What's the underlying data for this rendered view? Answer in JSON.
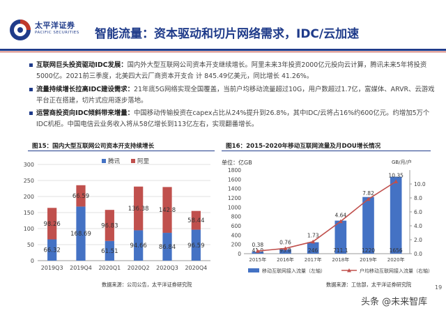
{
  "header": {
    "logo_cn": "太平洋证券",
    "logo_en": "PACIFIC SECURITIES",
    "title": "智能流量：资本驱动和切片网络需求，IDC/云加速"
  },
  "bullets": [
    {
      "head": "互联网巨头投资驱动IDC发展：",
      "text": "国内外大型互联网公司资本开支继续增长。阿里未来3年投资2000亿元投向云计算，腾讯未来5年将投资5000亿。2021前三季度，北美四大云厂商资本开支合 计 845.49亿美元，同比增长 41.26%。"
    },
    {
      "head": "流量持续增长拉高IDC建设需求：",
      "text": "21年底5G网络实现全国覆盖，当前户均移动流量超过10G，用户数超过1.7亿，富媒体、ARVR、云游戏平台正在搭建，切片式应用逐步落地。"
    },
    {
      "head": "运营商投资向IDC倾斜带来增量：",
      "text": "中国移动传输投资在capex占比从24%提升到26.8%，其中IDC/云将占16%约600亿元。约增加5万个IDC机柜。中国电信云业务收入将从58亿增长到113亿左右，实现翻番增长。"
    }
  ],
  "fig15": {
    "title": "图15：国内大型互联网公司资本开支持续增长",
    "source": "数据来源：公司公告，太平洋证券研究院"
  },
  "fig16": {
    "title": "图16：2015-2020年移动互联网流量及月DOU增长情况",
    "source": "数据来源：工信部，太平洋证券研究院",
    "left_unit": "单位：亿GB",
    "right_unit": "GB/月/户"
  },
  "chart_data": [
    {
      "type": "bar",
      "stacked": true,
      "categories": [
        "2019Q3",
        "2019Q4",
        "2020Q1",
        "2020Q2",
        "2020Q3",
        "2020Q4"
      ],
      "series": [
        {
          "name": "腾讯",
          "color": "#4472c4",
          "values": [
            66.32,
            168.69,
            61.51,
            94.66,
            86.84,
            96.59
          ]
        },
        {
          "name": "阿里",
          "color": "#c0504d",
          "values": [
            98.26,
            66.59,
            96.83,
            136.38,
            142.8,
            58.44
          ]
        }
      ],
      "yticks": [
        0,
        50,
        100,
        150,
        200,
        250,
        300
      ],
      "ylim": [
        0,
        300
      ],
      "legend": "top-left"
    },
    {
      "type": "bar+line",
      "categories": [
        "2015年",
        "2016年",
        "2017年",
        "2018年",
        "2019年",
        "2020年"
      ],
      "bar_series": {
        "name": "移动互联网接入流量（左轴）",
        "color": "#4472c4",
        "values": [
          41.9,
          93.8,
          246,
          711.1,
          1220,
          1656
        ]
      },
      "line_series": {
        "name": "户均移动互联网接入流量（右轴）",
        "color": "#c0504d",
        "values": [
          0.38,
          0.76,
          1.73,
          4.64,
          7.82,
          10.35
        ]
      },
      "y_left": {
        "ticks": [
          0,
          200,
          400,
          600,
          800,
          1000,
          1200,
          1400,
          1600,
          1800
        ],
        "lim": [
          0,
          1800
        ]
      },
      "y_right": {
        "ticks": [
          0.0,
          2.0,
          4.0,
          6.0,
          8.0,
          10.0
        ],
        "tick_labels": [
          "0.0",
          "2.0",
          "4.0",
          "6.0",
          "8.0",
          "10.0"
        ],
        "lim": [
          0,
          12
        ]
      },
      "legend": "bottom"
    }
  ],
  "footer": {
    "page": "19",
    "watermark": "头条 @未来智库"
  }
}
